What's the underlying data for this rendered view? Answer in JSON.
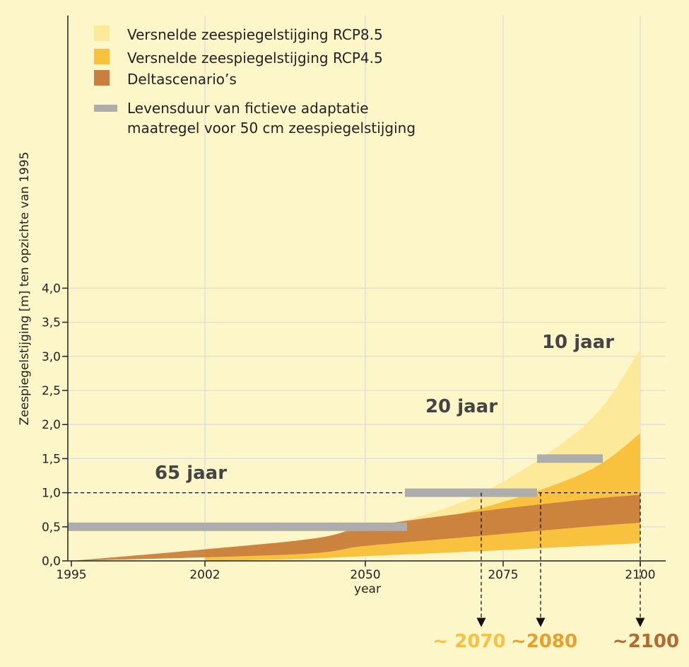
{
  "chart_data": {
    "type": "area",
    "xlabel": "year",
    "ylabel": "Zeespiegelstijging [m] ten opzichte van 1995",
    "x_ticks": [
      "1995",
      "2002",
      "2050",
      "2075",
      "2100"
    ],
    "y_ticks": [
      "0,0",
      "0,5",
      "1,0",
      "1,5",
      "2,0",
      "2,5",
      "3,0",
      "3,5",
      "4,0"
    ],
    "ylim": [
      0,
      4
    ],
    "grid": true,
    "legend_position": "top-left",
    "legend": [
      {
        "label": "Versnelde zeespiegelstijging RCP8.5",
        "color": "#fde99a"
      },
      {
        "label": "Versnelde zeespiegelstijging RCP4.5",
        "color": "#f8c13e"
      },
      {
        "label": "Deltascenario’s",
        "color": "#c97f3e"
      },
      {
        "label": "Levensduur van fictieve adaptatie\nmaatregel voor 50 cm zeespiegelstijging",
        "color": "#adadad"
      }
    ],
    "series": [
      {
        "name": "Versnelde zeespiegelstijging RCP8.5",
        "color": "#fde99a",
        "lower": [
          [
            2010,
            0.0
          ],
          [
            2030,
            0.02
          ],
          [
            2050,
            0.08
          ],
          [
            2070,
            0.2
          ],
          [
            2090,
            0.45
          ],
          [
            2100,
            0.6
          ]
        ],
        "upper": [
          [
            2010,
            0.0
          ],
          [
            2030,
            0.2
          ],
          [
            2050,
            0.45
          ],
          [
            2070,
            0.95
          ],
          [
            2090,
            2.0
          ],
          [
            2100,
            3.1
          ]
        ]
      },
      {
        "name": "Versnelde zeespiegelstijging RCP4.5",
        "color": "#f8c13e",
        "lower": [
          [
            2002,
            0.0
          ],
          [
            2030,
            0.03
          ],
          [
            2050,
            0.07
          ],
          [
            2070,
            0.14
          ],
          [
            2090,
            0.22
          ],
          [
            2100,
            0.26
          ]
        ],
        "upper": [
          [
            2002,
            0.17
          ],
          [
            2030,
            0.3
          ],
          [
            2050,
            0.45
          ],
          [
            2070,
            0.75
          ],
          [
            2090,
            1.3
          ],
          [
            2100,
            1.87
          ]
        ]
      },
      {
        "name": "Deltascenario’s",
        "color": "#c97f3e",
        "lower": [
          [
            1995,
            0.0
          ],
          [
            2030,
            0.1
          ],
          [
            2050,
            0.22
          ],
          [
            2070,
            0.36
          ],
          [
            2090,
            0.5
          ],
          [
            2100,
            0.56
          ]
        ],
        "upper": [
          [
            1995,
            0.0
          ],
          [
            2030,
            0.3
          ],
          [
            2050,
            0.5
          ],
          [
            2070,
            0.72
          ],
          [
            2090,
            0.9
          ],
          [
            2100,
            0.97
          ]
        ]
      }
    ],
    "lifetime_bars": [
      {
        "label": "65 jaar",
        "y": 0.5
      },
      {
        "label": "20 jaar",
        "y": 1.0
      },
      {
        "label": "10 jaar",
        "y": 1.5
      }
    ],
    "reference_line_y": 1.0,
    "crossing_years": [
      {
        "label": "~ 2070",
        "color": "#f8c13e"
      },
      {
        "label": "~2080",
        "color": "#e8a02a"
      },
      {
        "label": "~2100",
        "color": "#b36a30"
      }
    ]
  }
}
